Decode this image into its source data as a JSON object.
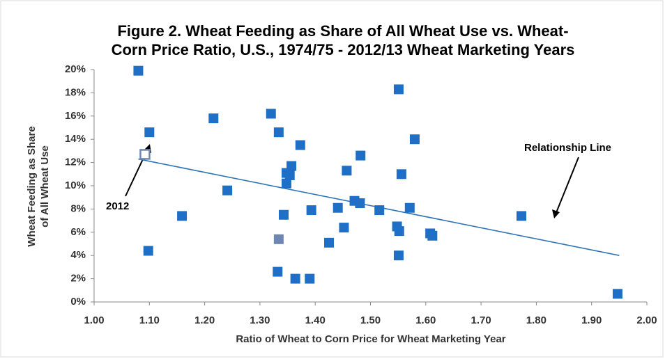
{
  "chart_data": {
    "type": "scatter",
    "title": [
      "Figure 2.  Wheat Feeding as Share of All Wheat Use vs. Wheat-",
      "Corn Price Ratio, U.S., 1974/75 - 2012/13 Wheat Marketing Years"
    ],
    "x_label": "Ratio of Wheat to Corn Price for Wheat Marketing Year",
    "y_label": [
      "Wheat Feeding as Share",
      "of All  Wheat Use"
    ],
    "xlim": [
      1.0,
      2.0
    ],
    "ylim": [
      0,
      20
    ],
    "xticks": [
      {
        "value": 1.0,
        "label": "1.00"
      },
      {
        "value": 1.1,
        "label": "1.10"
      },
      {
        "value": 1.2,
        "label": "1.20"
      },
      {
        "value": 1.3,
        "label": "1.30"
      },
      {
        "value": 1.4,
        "label": "1.40"
      },
      {
        "value": 1.5,
        "label": "1.50"
      },
      {
        "value": 1.6,
        "label": "1.60"
      },
      {
        "value": 1.7,
        "label": "1.70"
      },
      {
        "value": 1.8,
        "label": "1.80"
      },
      {
        "value": 1.9,
        "label": "1.90"
      },
      {
        "value": 2.0,
        "label": "2.00"
      }
    ],
    "yticks": [
      {
        "value": 0,
        "label": "0%"
      },
      {
        "value": 2,
        "label": "2%"
      },
      {
        "value": 4,
        "label": "4%"
      },
      {
        "value": 6,
        "label": "6%"
      },
      {
        "value": 8,
        "label": "8%"
      },
      {
        "value": 10,
        "label": "10%"
      },
      {
        "value": 12,
        "label": "12%"
      },
      {
        "value": 14,
        "label": "14%"
      },
      {
        "value": 16,
        "label": "16%"
      },
      {
        "value": 18,
        "label": "18%"
      },
      {
        "value": 20,
        "label": "20%"
      }
    ],
    "grid": false,
    "series": [
      {
        "color": "#1f6fc6",
        "x": [
          1.08,
          1.551,
          1.32,
          1.216,
          1.1,
          1.334,
          1.58,
          1.373,
          1.482,
          1.357,
          1.348,
          1.354,
          1.348,
          1.457,
          1.556,
          1.241,
          1.471,
          1.481,
          1.571,
          1.441,
          1.393,
          1.516,
          1.773,
          1.159,
          1.343,
          1.452,
          1.548,
          1.552,
          1.608,
          1.612,
          1.425,
          1.098,
          1.551,
          1.332,
          1.364,
          1.39,
          1.947
        ],
        "values": [
          19.9,
          18.3,
          16.2,
          15.8,
          14.6,
          14.6,
          14.0,
          13.5,
          12.6,
          11.7,
          11.1,
          10.9,
          10.2,
          11.3,
          11.0,
          9.6,
          8.7,
          8.5,
          8.1,
          8.1,
          7.9,
          7.9,
          7.4,
          7.4,
          7.5,
          6.4,
          6.5,
          6.1,
          5.9,
          5.7,
          5.1,
          4.4,
          4.0,
          2.6,
          2.0,
          2.0,
          0.7
        ]
      },
      {
        "color": "#1f6fc6",
        "hollow": true,
        "x": [
          1.092
        ],
        "values": [
          12.7
        ]
      },
      {
        "color": "#6f86b5",
        "x": [
          1.334
        ],
        "values": [
          5.4
        ]
      }
    ],
    "trendline": {
      "color": "#2e75b6",
      "x": [
        1.08,
        1.95
      ],
      "values": [
        12.3,
        4.0
      ]
    },
    "annotations": [
      "Relationship Line",
      "2012"
    ]
  }
}
